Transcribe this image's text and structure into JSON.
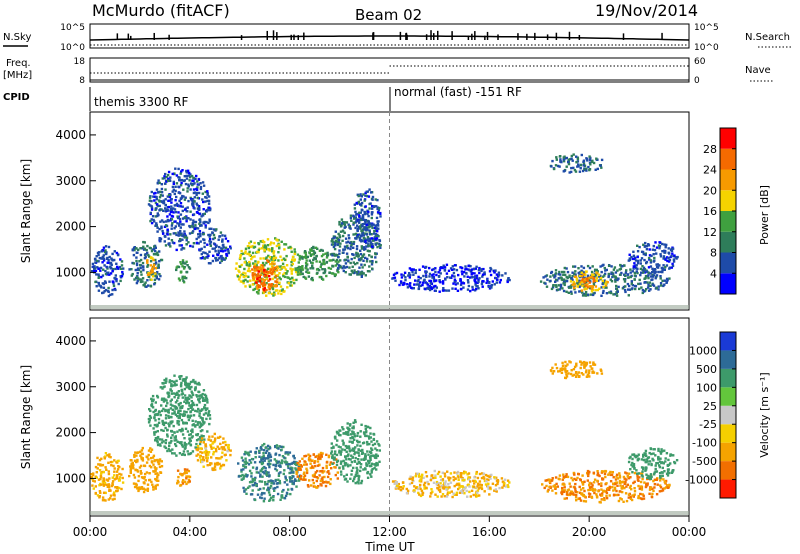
{
  "header": {
    "title": "McMurdo (fitACF)",
    "beam": "Beam 02",
    "date": "19/Nov/2014"
  },
  "left_labels": {
    "nsky": "N.Sky",
    "freq_line1": "Freq.",
    "freq_line2": "[MHz]",
    "cpid": "CPID"
  },
  "right_labels": {
    "nsearch": "N.Search",
    "nave": "Nave"
  },
  "cpid_segments": [
    {
      "text": "themis 3300 RF",
      "start_hour": 0
    },
    {
      "text": "normal (fast) -151 RF",
      "start_hour": 12
    }
  ],
  "noise_panel": {
    "left_ticks": [
      "10^5",
      "10^0"
    ],
    "right_ticks": [
      "10^5",
      "10^0"
    ]
  },
  "freq_panel": {
    "left_ticks": [
      "18",
      "8"
    ],
    "right_ticks": [
      "60",
      "0"
    ]
  },
  "x_axis": {
    "label": "Time UT",
    "ticks": [
      "00:00",
      "04:00",
      "08:00",
      "12:00",
      "16:00",
      "20:00",
      "00:00"
    ]
  },
  "y_axis": {
    "label": "Slant Range [km]",
    "ticks": [
      "1000",
      "2000",
      "3000",
      "4000"
    ]
  },
  "power_colorbar": {
    "label": "Power [dB]",
    "ticks": [
      "4",
      "8",
      "12",
      "16",
      "20",
      "24",
      "28"
    ],
    "colors": [
      "#0000ff",
      "#1e4ba8",
      "#2e7d5a",
      "#3fa03f",
      "#f5d300",
      "#f79a00",
      "#f56a00",
      "#ff0000"
    ]
  },
  "velocity_colorbar": {
    "label": "Velocity [m s⁻¹]",
    "ticks": [
      "1000",
      "500",
      "100",
      "25",
      "-25",
      "-100",
      "-500",
      "-1000"
    ],
    "colors": [
      "#1a3ad6",
      "#2d6b97",
      "#3d9a6a",
      "#63c63c",
      "#c8c8c8",
      "#f5cf00",
      "#f5a300",
      "#f26f00",
      "#ff1a00"
    ]
  },
  "chart_data": {
    "type": "heatmap",
    "x_range_hours": [
      0,
      24
    ],
    "y_range_km": [
      180,
      4500
    ],
    "panels": [
      {
        "name": "power",
        "blobs": [
          {
            "t0": 0.0,
            "t1": 1.3,
            "r0": 500,
            "r1": 1600,
            "level": 6
          },
          {
            "t0": 1.5,
            "t1": 2.9,
            "r0": 700,
            "r1": 1700,
            "level": 8
          },
          {
            "t0": 2.2,
            "t1": 2.6,
            "r0": 800,
            "r1": 1400,
            "level": 20
          },
          {
            "t0": 2.3,
            "t1": 4.8,
            "r0": 1500,
            "r1": 3300,
            "level": 6
          },
          {
            "t0": 3.4,
            "t1": 4.0,
            "r0": 800,
            "r1": 1300,
            "level": 12
          },
          {
            "t0": 4.2,
            "t1": 5.6,
            "r0": 1200,
            "r1": 2000,
            "level": 6
          },
          {
            "t0": 5.8,
            "t1": 8.4,
            "r0": 500,
            "r1": 1800,
            "level": 16
          },
          {
            "t0": 6.4,
            "t1": 7.6,
            "r0": 600,
            "r1": 1300,
            "level": 24
          },
          {
            "t0": 6.6,
            "t1": 7.2,
            "r0": 650,
            "r1": 1100,
            "level": 28
          },
          {
            "t0": 8.2,
            "t1": 10.0,
            "r0": 800,
            "r1": 1600,
            "level": 12
          },
          {
            "t0": 9.6,
            "t1": 11.6,
            "r0": 900,
            "r1": 2300,
            "level": 8
          },
          {
            "t0": 10.5,
            "t1": 11.6,
            "r0": 1500,
            "r1": 2900,
            "level": 6
          },
          {
            "t0": 12.0,
            "t1": 16.8,
            "r0": 600,
            "r1": 1200,
            "level": 4
          },
          {
            "t0": 18.0,
            "t1": 23.2,
            "r0": 500,
            "r1": 1200,
            "level": 8
          },
          {
            "t0": 19.2,
            "t1": 20.7,
            "r0": 600,
            "r1": 1050,
            "level": 20
          },
          {
            "t0": 19.6,
            "t1": 20.2,
            "r0": 700,
            "r1": 950,
            "level": 24
          },
          {
            "t0": 18.3,
            "t1": 20.6,
            "r0": 3200,
            "r1": 3600,
            "level": 8
          },
          {
            "t0": 21.5,
            "t1": 23.5,
            "r0": 1000,
            "r1": 1700,
            "level": 6
          }
        ]
      },
      {
        "name": "velocity",
        "blobs": [
          {
            "t0": 0.0,
            "t1": 1.3,
            "r0": 500,
            "r1": 1600,
            "level": -100
          },
          {
            "t0": 1.5,
            "t1": 2.9,
            "r0": 700,
            "r1": 1700,
            "level": -200
          },
          {
            "t0": 2.3,
            "t1": 4.8,
            "r0": 1500,
            "r1": 3300,
            "level": 150
          },
          {
            "t0": 3.4,
            "t1": 4.0,
            "r0": 800,
            "r1": 1300,
            "level": -300
          },
          {
            "t0": 4.2,
            "t1": 5.6,
            "r0": 1200,
            "r1": 2000,
            "level": -80
          },
          {
            "t0": 5.8,
            "t1": 8.4,
            "r0": 500,
            "r1": 1800,
            "level": 300
          },
          {
            "t0": 8.2,
            "t1": 10.0,
            "r0": 800,
            "r1": 1600,
            "level": -300
          },
          {
            "t0": 9.6,
            "t1": 11.6,
            "r0": 900,
            "r1": 2300,
            "level": 200
          },
          {
            "t0": 12.0,
            "t1": 16.8,
            "r0": 600,
            "r1": 1200,
            "level": -60
          },
          {
            "t0": 18.0,
            "t1": 23.2,
            "r0": 500,
            "r1": 1200,
            "level": -300
          },
          {
            "t0": 18.3,
            "t1": 20.6,
            "r0": 3200,
            "r1": 3600,
            "level": -150
          },
          {
            "t0": 21.5,
            "t1": 23.5,
            "r0": 1000,
            "r1": 1700,
            "level": 150
          }
        ]
      }
    ]
  }
}
